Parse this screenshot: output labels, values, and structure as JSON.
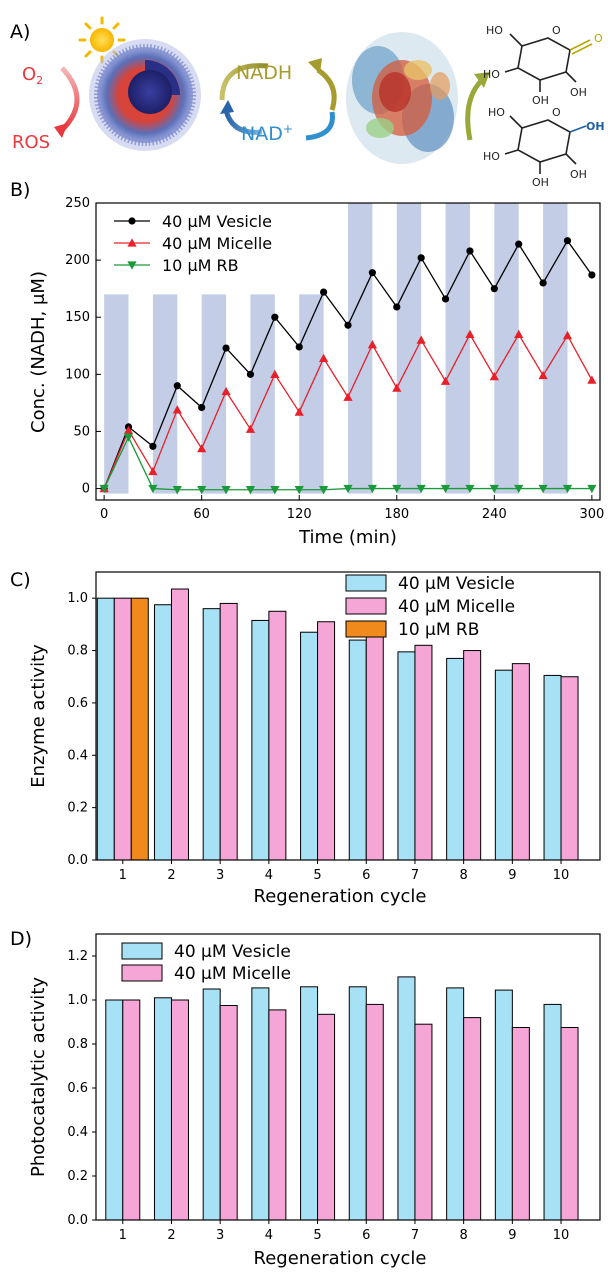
{
  "panel_a": {
    "label": "A)",
    "o2_text": "O",
    "o2_sub": "2",
    "ros_text": "ROS",
    "nadh_text": "NADH",
    "nad_text": "NAD",
    "nad_sup": "+",
    "colors": {
      "o2": "#e8393f",
      "nadh": "#a79b2e",
      "nad": "#2f8fcf",
      "product": "#1e5fa6",
      "arrow_green": "#9aa83a"
    }
  },
  "chart_data": [
    {
      "panel_label": "B)",
      "type": "line",
      "xlabel": "Time (min)",
      "ylabel": "Conc. (NADH, μM)",
      "xlim": [
        -5,
        305
      ],
      "ylim": [
        -10,
        250
      ],
      "xticks": [
        0,
        60,
        120,
        180,
        240,
        300
      ],
      "yticks": [
        0,
        50,
        100,
        150,
        200,
        250
      ],
      "light_bands": {
        "color": "#c3cde6",
        "height": 170,
        "intervals": [
          [
            0,
            15
          ],
          [
            30,
            45
          ],
          [
            60,
            75
          ],
          [
            90,
            105
          ],
          [
            120,
            135
          ],
          [
            150,
            165
          ],
          [
            180,
            195
          ],
          [
            210,
            225
          ],
          [
            240,
            255
          ],
          [
            270,
            285
          ]
        ],
        "tall_from": 150,
        "tall_height": 250
      },
      "legend_position": "top-left",
      "series": [
        {
          "name": "40 μM  Vesicle",
          "color": "#000000",
          "marker": "circle",
          "x": [
            0,
            15,
            30,
            45,
            60,
            75,
            90,
            105,
            120,
            135,
            150,
            165,
            180,
            195,
            210,
            225,
            240,
            255,
            270,
            285,
            300
          ],
          "y": [
            0,
            54,
            37,
            90,
            71,
            123,
            100,
            150,
            124,
            172,
            143,
            189,
            159,
            202,
            166,
            208,
            175,
            214,
            180,
            217,
            187
          ]
        },
        {
          "name": "40 μM  Micelle",
          "color": "#e8202a",
          "marker": "triangle-up",
          "x": [
            0,
            15,
            30,
            45,
            60,
            75,
            90,
            105,
            120,
            135,
            150,
            165,
            180,
            195,
            210,
            225,
            240,
            255,
            270,
            285,
            300
          ],
          "y": [
            0,
            51,
            15,
            69,
            35,
            85,
            52,
            100,
            67,
            114,
            80,
            126,
            88,
            130,
            94,
            135,
            98,
            135,
            99,
            134,
            95
          ]
        },
        {
          "name": "10 μM  RB",
          "color": "#1a9a3a",
          "marker": "triangle-down",
          "x": [
            0,
            15,
            30,
            45,
            60,
            75,
            90,
            105,
            120,
            135,
            150,
            165,
            180,
            195,
            210,
            225,
            240,
            255,
            270,
            285,
            300
          ],
          "y": [
            0,
            45,
            0,
            -1,
            -1,
            -1,
            -1,
            -1,
            -1,
            -1,
            0,
            0,
            0,
            0,
            0,
            0,
            0,
            0,
            0,
            0,
            0
          ]
        }
      ]
    },
    {
      "panel_label": "C)",
      "type": "bar",
      "xlabel": "Regeneration cycle",
      "ylabel": "Enzyme activity",
      "ylim": [
        0,
        1.1
      ],
      "yticks": [
        0.0,
        0.2,
        0.4,
        0.6,
        0.8,
        1.0
      ],
      "categories": [
        "1",
        "2",
        "3",
        "4",
        "5",
        "6",
        "7",
        "8",
        "9",
        "10"
      ],
      "legend_position": "top-right",
      "series": [
        {
          "name": "40 μM  Vesicle",
          "color": "#a6e1f5",
          "values": [
            1.0,
            0.975,
            0.96,
            0.915,
            0.87,
            0.84,
            0.795,
            0.77,
            0.725,
            0.705
          ]
        },
        {
          "name": "40 μM  Micelle",
          "color": "#f5a6d6",
          "values": [
            1.0,
            1.035,
            0.98,
            0.95,
            0.91,
            0.895,
            0.82,
            0.8,
            0.75,
            0.7
          ]
        },
        {
          "name": "10 μM  RB",
          "color": "#f08a1c",
          "values": [
            1.0,
            null,
            null,
            null,
            null,
            null,
            null,
            null,
            null,
            null
          ]
        }
      ]
    },
    {
      "panel_label": "D)",
      "type": "bar",
      "xlabel": "Regeneration cycle",
      "ylabel": "Photocatalytic activity",
      "ylim": [
        0,
        1.3
      ],
      "yticks": [
        0.0,
        0.2,
        0.4,
        0.6,
        0.8,
        1.0,
        1.2
      ],
      "categories": [
        "1",
        "2",
        "3",
        "4",
        "5",
        "6",
        "7",
        "8",
        "9",
        "10"
      ],
      "legend_position": "top-left",
      "series": [
        {
          "name": "40 μM  Vesicle",
          "color": "#a6e1f5",
          "values": [
            1.0,
            1.01,
            1.05,
            1.055,
            1.06,
            1.06,
            1.105,
            1.055,
            1.045,
            0.98
          ]
        },
        {
          "name": "40 μM  Micelle",
          "color": "#f5a6d6",
          "values": [
            1.0,
            1.0,
            0.975,
            0.955,
            0.935,
            0.98,
            0.89,
            0.92,
            0.875,
            0.875
          ]
        }
      ]
    }
  ]
}
